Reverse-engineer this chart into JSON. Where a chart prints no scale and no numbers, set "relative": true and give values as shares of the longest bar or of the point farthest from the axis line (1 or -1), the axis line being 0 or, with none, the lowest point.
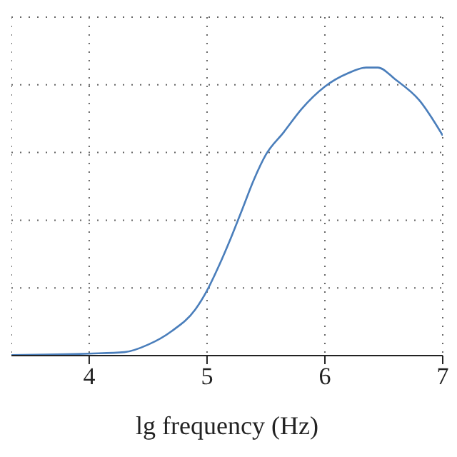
{
  "chart_data": {
    "type": "line",
    "xlabel": "lg frequency (Hz)",
    "relative": true,
    "grid": true,
    "xlim": [
      3.34,
      7.0
    ],
    "xticks": [
      4,
      5,
      6,
      7
    ],
    "x": [
      3.34,
      4.0,
      4.3,
      4.5,
      4.7,
      4.9,
      5.0,
      5.1,
      5.2,
      5.3,
      5.4,
      5.5,
      5.65,
      5.8,
      6.0,
      6.2,
      6.35,
      6.45,
      6.6,
      6.8,
      7.0
    ],
    "series": [
      {
        "color": "#4a7ebb",
        "values": [
          0.002,
          0.007,
          0.012,
          0.038,
          0.085,
          0.16,
          0.226,
          0.311,
          0.406,
          0.509,
          0.613,
          0.698,
          0.775,
          0.855,
          0.934,
          0.981,
          1,
          1,
          0.958,
          0.887,
          0.764
        ]
      }
    ]
  }
}
